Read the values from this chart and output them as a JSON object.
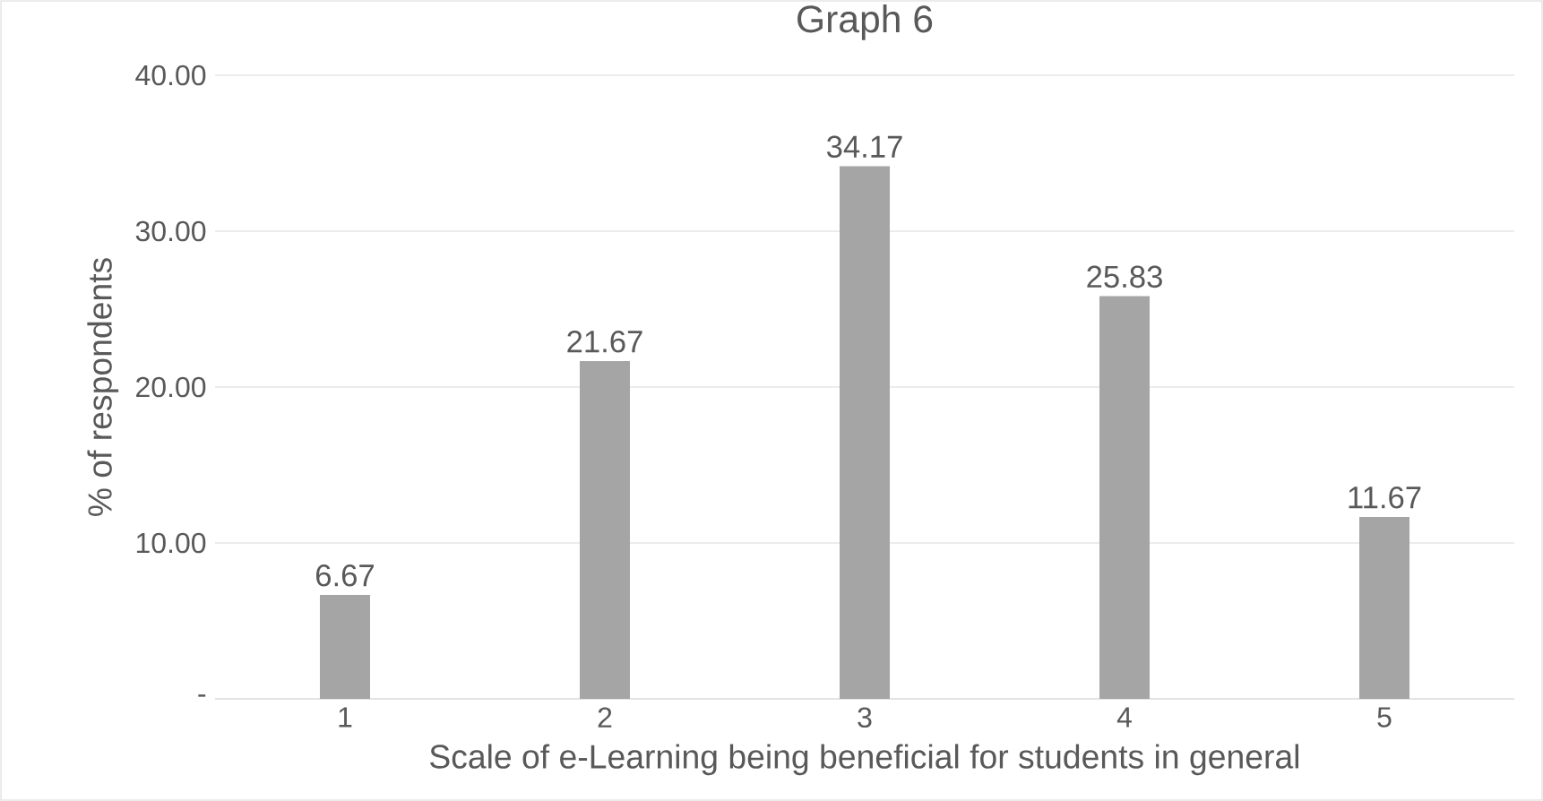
{
  "chart_data": {
    "type": "bar",
    "title": "Graph 6",
    "xlabel": "Scale of e-Learning being beneficial for students in general",
    "ylabel": "% of respondents",
    "categories": [
      "1",
      "2",
      "3",
      "4",
      "5"
    ],
    "values": [
      6.67,
      21.67,
      34.17,
      25.83,
      11.67
    ],
    "color": "#a5a5a5",
    "ylim": [
      0,
      40
    ],
    "yticks": [
      {
        "value": 0,
        "label": "-"
      },
      {
        "value": 10,
        "label": "10.00"
      },
      {
        "value": 20,
        "label": "20.00"
      },
      {
        "value": 30,
        "label": "30.00"
      },
      {
        "value": 40,
        "label": "40.00"
      }
    ],
    "grid": "y",
    "data_labels": true
  }
}
